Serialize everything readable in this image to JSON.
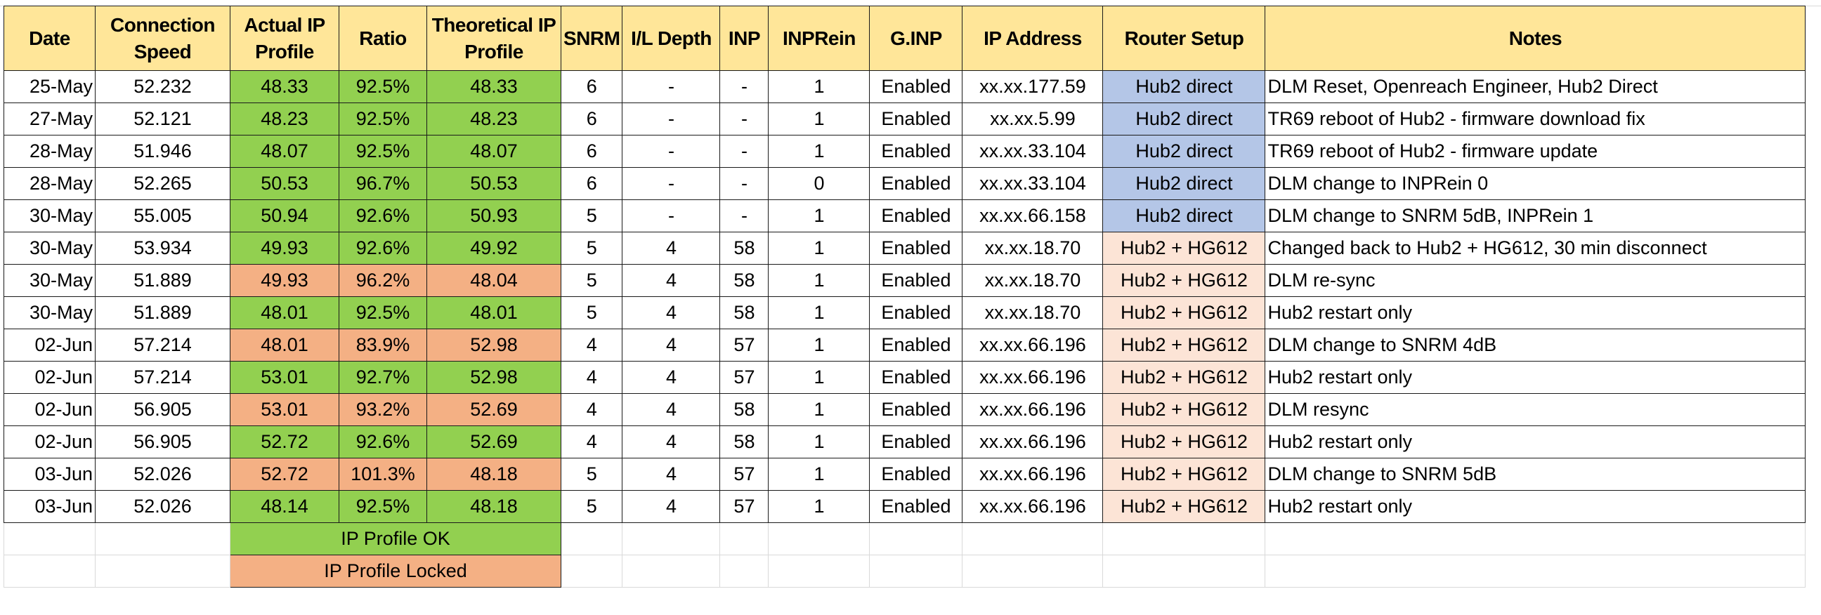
{
  "headers": [
    "Date",
    "Connection Speed",
    "Actual IP Profile",
    "Ratio",
    "Theoretical IP Profile",
    "SNRM",
    "I/L Depth",
    "INP",
    "INPRein",
    "G.INP",
    "IP Address",
    "Router Setup",
    "Notes"
  ],
  "colors": {
    "header": "#FFE699",
    "ip_profile_ok": "#92D050",
    "ip_profile_locked": "#F4B084",
    "hub2_direct": "#B4C6E7",
    "hub2_hg612": "#FCE4D6"
  },
  "rows": [
    {
      "date": "25-May",
      "speed": "52.232",
      "actual": "48.33",
      "ratio": "92.5%",
      "theoretical": "48.33",
      "snrm": "6",
      "il": "-",
      "inp": "-",
      "inprein": "1",
      "ginp": "Enabled",
      "ip": "xx.xx.177.59",
      "router": "Hub2 direct",
      "notes": "DLM Reset, Openreach Engineer, Hub2 Direct",
      "status": "ok"
    },
    {
      "date": "27-May",
      "speed": "52.121",
      "actual": "48.23",
      "ratio": "92.5%",
      "theoretical": "48.23",
      "snrm": "6",
      "il": "-",
      "inp": "-",
      "inprein": "1",
      "ginp": "Enabled",
      "ip": "xx.xx.5.99",
      "router": "Hub2 direct",
      "notes": "TR69 reboot of Hub2 - firmware download fix",
      "status": "ok"
    },
    {
      "date": "28-May",
      "speed": "51.946",
      "actual": "48.07",
      "ratio": "92.5%",
      "theoretical": "48.07",
      "snrm": "6",
      "il": "-",
      "inp": "-",
      "inprein": "1",
      "ginp": "Enabled",
      "ip": "xx.xx.33.104",
      "router": "Hub2 direct",
      "notes": "TR69 reboot of Hub2 - firmware update",
      "status": "ok"
    },
    {
      "date": "28-May",
      "speed": "52.265",
      "actual": "50.53",
      "ratio": "96.7%",
      "theoretical": "50.53",
      "snrm": "6",
      "il": "-",
      "inp": "-",
      "inprein": "0",
      "ginp": "Enabled",
      "ip": "xx.xx.33.104",
      "router": "Hub2 direct",
      "notes": "DLM change to INPRein 0",
      "status": "ok"
    },
    {
      "date": "30-May",
      "speed": "55.005",
      "actual": "50.94",
      "ratio": "92.6%",
      "theoretical": "50.93",
      "snrm": "5",
      "il": "-",
      "inp": "-",
      "inprein": "1",
      "ginp": "Enabled",
      "ip": "xx.xx.66.158",
      "router": "Hub2 direct",
      "notes": "DLM change to SNRM 5dB, INPRein 1",
      "status": "ok"
    },
    {
      "date": "30-May",
      "speed": "53.934",
      "actual": "49.93",
      "ratio": "92.6%",
      "theoretical": "49.92",
      "snrm": "5",
      "il": "4",
      "inp": "58",
      "inprein": "1",
      "ginp": "Enabled",
      "ip": "xx.xx.18.70",
      "router": "Hub2 + HG612",
      "notes": "Changed back to Hub2 + HG612, 30 min disconnect",
      "status": "ok"
    },
    {
      "date": "30-May",
      "speed": "51.889",
      "actual": "49.93",
      "ratio": "96.2%",
      "theoretical": "48.04",
      "snrm": "5",
      "il": "4",
      "inp": "58",
      "inprein": "1",
      "ginp": "Enabled",
      "ip": "xx.xx.18.70",
      "router": "Hub2 + HG612",
      "notes": "DLM re-sync",
      "status": "locked"
    },
    {
      "date": "30-May",
      "speed": "51.889",
      "actual": "48.01",
      "ratio": "92.5%",
      "theoretical": "48.01",
      "snrm": "5",
      "il": "4",
      "inp": "58",
      "inprein": "1",
      "ginp": "Enabled",
      "ip": "xx.xx.18.70",
      "router": "Hub2 + HG612",
      "notes": "Hub2 restart only",
      "status": "ok"
    },
    {
      "date": "02-Jun",
      "speed": "57.214",
      "actual": "48.01",
      "ratio": "83.9%",
      "theoretical": "52.98",
      "snrm": "4",
      "il": "4",
      "inp": "57",
      "inprein": "1",
      "ginp": "Enabled",
      "ip": "xx.xx.66.196",
      "router": "Hub2 + HG612",
      "notes": "DLM change to SNRM 4dB",
      "status": "locked"
    },
    {
      "date": "02-Jun",
      "speed": "57.214",
      "actual": "53.01",
      "ratio": "92.7%",
      "theoretical": "52.98",
      "snrm": "4",
      "il": "4",
      "inp": "57",
      "inprein": "1",
      "ginp": "Enabled",
      "ip": "xx.xx.66.196",
      "router": "Hub2 + HG612",
      "notes": "Hub2 restart only",
      "status": "ok"
    },
    {
      "date": "02-Jun",
      "speed": "56.905",
      "actual": "53.01",
      "ratio": "93.2%",
      "theoretical": "52.69",
      "snrm": "4",
      "il": "4",
      "inp": "58",
      "inprein": "1",
      "ginp": "Enabled",
      "ip": "xx.xx.66.196",
      "router": "Hub2 + HG612",
      "notes": "DLM resync",
      "status": "locked"
    },
    {
      "date": "02-Jun",
      "speed": "56.905",
      "actual": "52.72",
      "ratio": "92.6%",
      "theoretical": "52.69",
      "snrm": "4",
      "il": "4",
      "inp": "58",
      "inprein": "1",
      "ginp": "Enabled",
      "ip": "xx.xx.66.196",
      "router": "Hub2 + HG612",
      "notes": "Hub2 restart only",
      "status": "ok"
    },
    {
      "date": "03-Jun",
      "speed": "52.026",
      "actual": "52.72",
      "ratio": "101.3%",
      "theoretical": "48.18",
      "snrm": "5",
      "il": "4",
      "inp": "57",
      "inprein": "1",
      "ginp": "Enabled",
      "ip": "xx.xx.66.196",
      "router": "Hub2 + HG612",
      "notes": "DLM change to SNRM 5dB",
      "status": "locked"
    },
    {
      "date": "03-Jun",
      "speed": "52.026",
      "actual": "48.14",
      "ratio": "92.5%",
      "theoretical": "48.18",
      "snrm": "5",
      "il": "4",
      "inp": "57",
      "inprein": "1",
      "ginp": "Enabled",
      "ip": "xx.xx.66.196",
      "router": "Hub2 + HG612",
      "notes": "Hub2 restart only",
      "status": "ok"
    }
  ],
  "legend": {
    "ok": "IP Profile OK",
    "locked": "IP Profile Locked"
  }
}
